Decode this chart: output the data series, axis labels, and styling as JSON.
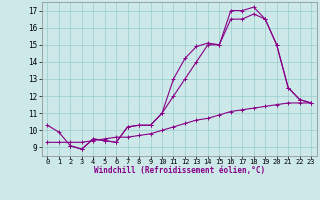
{
  "background_color": "#cce8e8",
  "line_color": "#880088",
  "grid_color": "#99cccc",
  "xlabel": "Windchill (Refroidissement éolien,°C)",
  "xlabel_fontsize": 5.5,
  "xtick_fontsize": 5.0,
  "ytick_fontsize": 5.5,
  "xlim": [
    -0.5,
    23.5
  ],
  "ylim": [
    8.5,
    17.5
  ],
  "yticks": [
    9,
    10,
    11,
    12,
    13,
    14,
    15,
    16,
    17
  ],
  "xticks": [
    0,
    1,
    2,
    3,
    4,
    5,
    6,
    7,
    8,
    9,
    10,
    11,
    12,
    13,
    14,
    15,
    16,
    17,
    18,
    19,
    20,
    21,
    22,
    23
  ],
  "line1_x": [
    0,
    1,
    2,
    3,
    4,
    5,
    6,
    7,
    8,
    9,
    10,
    11,
    12,
    13,
    14,
    15,
    16,
    17,
    18,
    19,
    20,
    21,
    22,
    23
  ],
  "line1_y": [
    10.3,
    9.9,
    9.1,
    8.9,
    9.5,
    9.4,
    9.3,
    10.2,
    10.3,
    10.3,
    11.0,
    13.0,
    14.2,
    14.9,
    15.1,
    15.0,
    17.0,
    17.0,
    17.2,
    16.5,
    15.0,
    12.5,
    11.8,
    11.6
  ],
  "line2_x": [
    2,
    3,
    4,
    5,
    6,
    7,
    8,
    9,
    10,
    11,
    12,
    13,
    14,
    15,
    16,
    17,
    18,
    19,
    20,
    21,
    22,
    23
  ],
  "line2_y": [
    9.1,
    8.9,
    9.5,
    9.4,
    9.3,
    10.2,
    10.3,
    10.3,
    11.0,
    12.0,
    13.0,
    14.0,
    15.0,
    15.0,
    16.5,
    16.5,
    16.8,
    16.5,
    15.0,
    12.5,
    11.8,
    11.6
  ],
  "line3_x": [
    0,
    1,
    2,
    3,
    4,
    5,
    6,
    7,
    8,
    9,
    10,
    11,
    12,
    13,
    14,
    15,
    16,
    17,
    18,
    19,
    20,
    21,
    22,
    23
  ],
  "line3_y": [
    9.3,
    9.3,
    9.3,
    9.3,
    9.4,
    9.5,
    9.6,
    9.6,
    9.7,
    9.8,
    10.0,
    10.2,
    10.4,
    10.6,
    10.7,
    10.9,
    11.1,
    11.2,
    11.3,
    11.4,
    11.5,
    11.6,
    11.6,
    11.6
  ]
}
